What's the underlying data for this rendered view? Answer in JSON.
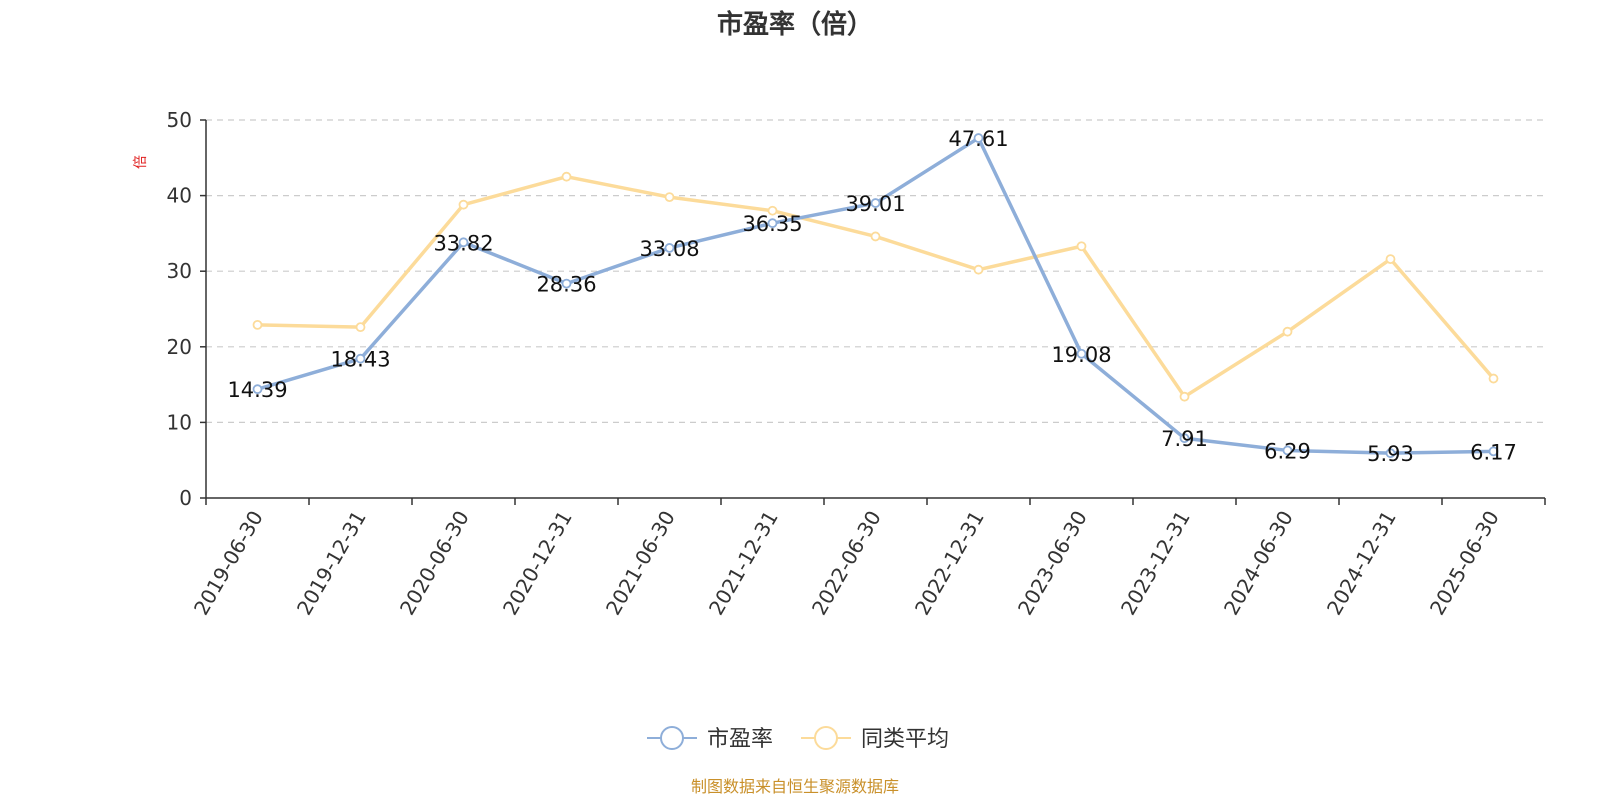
{
  "chart_data": {
    "type": "line",
    "title": "市盈率（倍）",
    "ylabel": "倍",
    "xlabel": "",
    "ylim": [
      0,
      50
    ],
    "yticks": [
      0,
      10,
      20,
      30,
      40,
      50
    ],
    "grid": "horizontal dashed",
    "legend_position": "bottom-center",
    "categories": [
      "2019-06-30",
      "2019-12-31",
      "2020-06-30",
      "2020-12-31",
      "2021-06-30",
      "2021-12-31",
      "2022-06-30",
      "2022-12-31",
      "2023-06-30",
      "2023-12-31",
      "2024-06-30",
      "2024-12-31",
      "2025-06-30"
    ],
    "series": [
      {
        "name": "市盈率",
        "color": "#8eaed9",
        "labels_shown": true,
        "values": [
          14.39,
          18.43,
          33.82,
          28.36,
          33.08,
          36.35,
          39.01,
          47.61,
          19.08,
          7.91,
          6.29,
          5.93,
          6.17
        ]
      },
      {
        "name": "同类平均",
        "color": "#fcdb9a",
        "labels_shown": false,
        "values": [
          22.9,
          22.6,
          38.8,
          42.5,
          39.8,
          38.0,
          34.6,
          30.2,
          33.3,
          13.4,
          22.0,
          31.6,
          15.8
        ]
      }
    ]
  },
  "unit_color": "#e02020",
  "source_note": "制图数据来自恒生聚源数据库",
  "source_color": "#c9902a"
}
